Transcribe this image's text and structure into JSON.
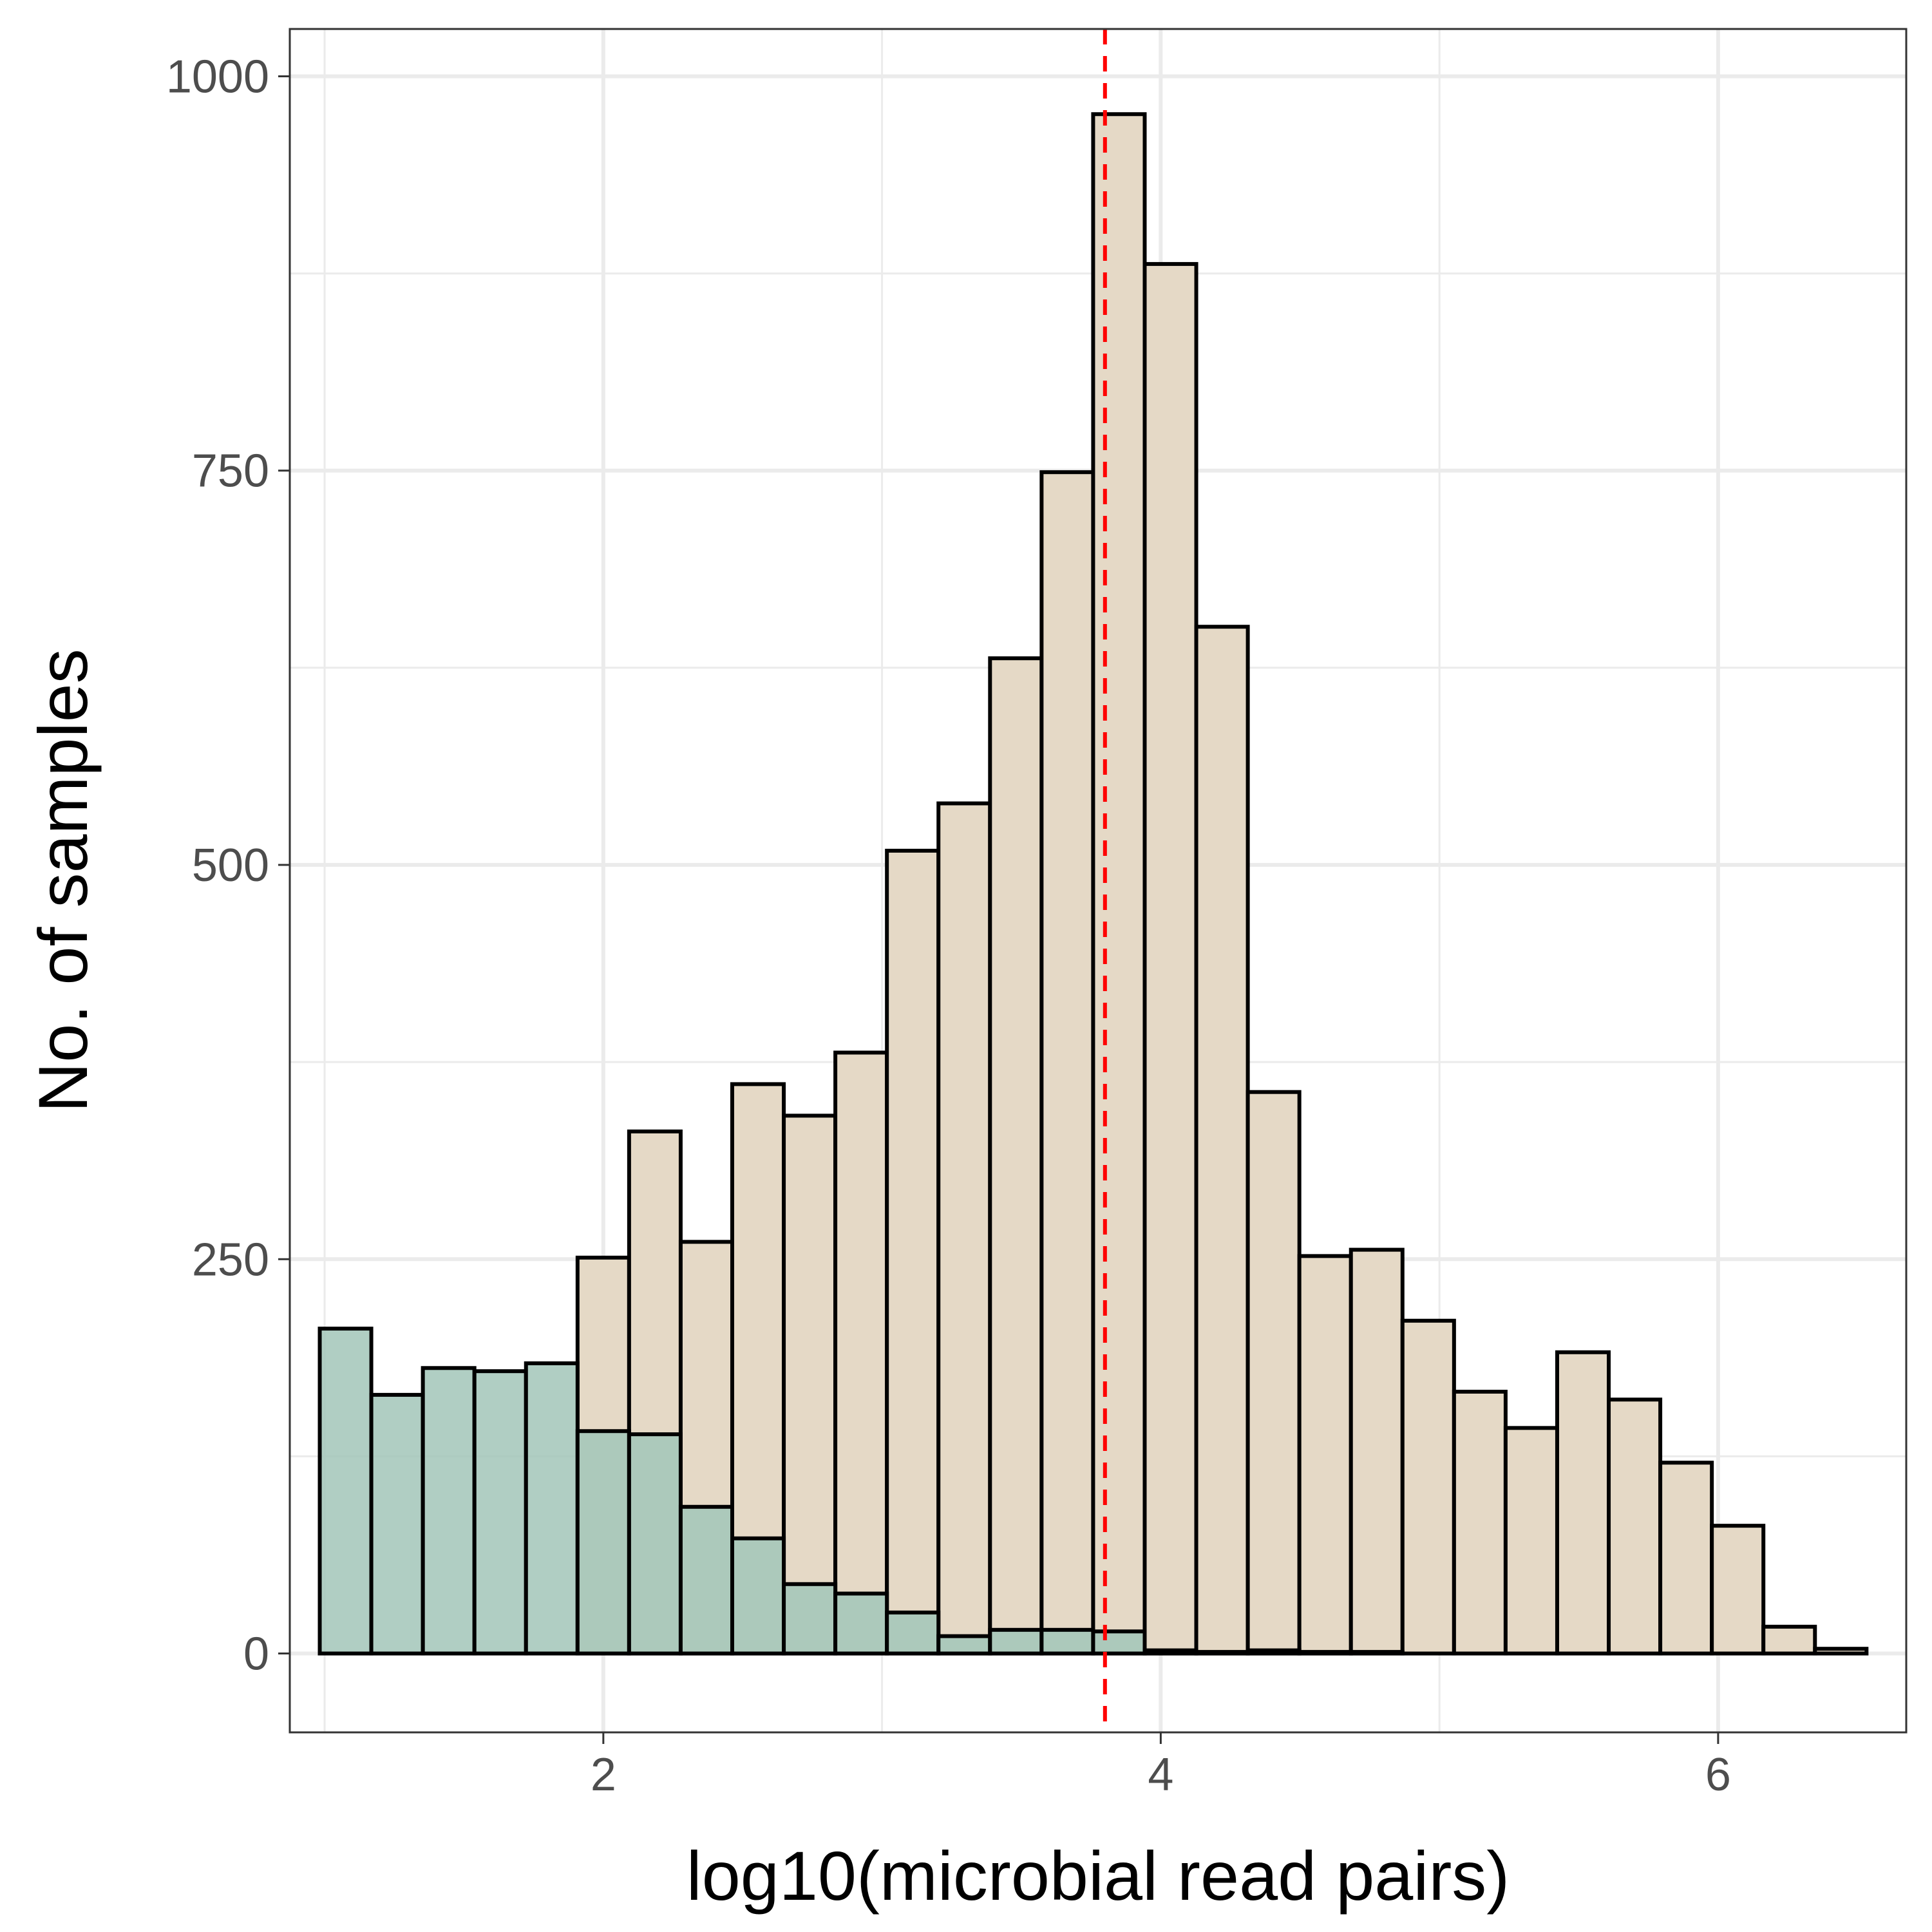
{
  "chart_data": {
    "type": "bar",
    "xlabel": "log10(microbial read pairs)",
    "ylabel": "No. of samples",
    "xlim": [
      0.875,
      6.675
    ],
    "ylim": [
      -50,
      1030
    ],
    "x_ticks": [
      2,
      4,
      6
    ],
    "x_tick_labels": [
      "2",
      "4",
      "6"
    ],
    "y_ticks": [
      0,
      250,
      500,
      750,
      1000
    ],
    "y_tick_labels": [
      "0",
      "250",
      "500",
      "750",
      "1000"
    ],
    "grid": true,
    "bin_width": 0.185,
    "reference_line": {
      "x": 3.8,
      "color": "#ff0000",
      "style": "dashed"
    },
    "series": [
      {
        "color": "#e5d9c6",
        "x": [
          2.0,
          2.185,
          2.37,
          2.555,
          2.74,
          2.925,
          3.11,
          3.295,
          3.48,
          3.665,
          3.85,
          4.035,
          4.22,
          4.405,
          4.59,
          4.775,
          4.96,
          5.145,
          5.33,
          5.515,
          5.7,
          5.885,
          6.07,
          6.255,
          6.44
        ],
        "values": [
          251,
          331,
          261,
          361,
          341,
          381,
          509,
          539,
          631,
          749,
          976,
          881,
          651,
          356,
          252,
          256,
          211,
          166,
          143,
          191,
          161,
          121,
          81,
          17,
          3
        ]
      },
      {
        "color": "#a2c5b9",
        "x": [
          1.075,
          1.26,
          1.445,
          1.63,
          1.815,
          2.0,
          2.185,
          2.37,
          2.555,
          2.74,
          2.925,
          3.11,
          3.295,
          3.48,
          3.665,
          3.85,
          4.035,
          4.22,
          4.405,
          4.59,
          4.775
        ],
        "values": [
          206,
          164,
          181,
          179,
          184,
          141,
          139,
          93,
          73,
          44,
          38,
          26,
          11,
          15,
          15,
          14,
          2,
          1,
          2,
          1,
          1
        ]
      }
    ]
  }
}
